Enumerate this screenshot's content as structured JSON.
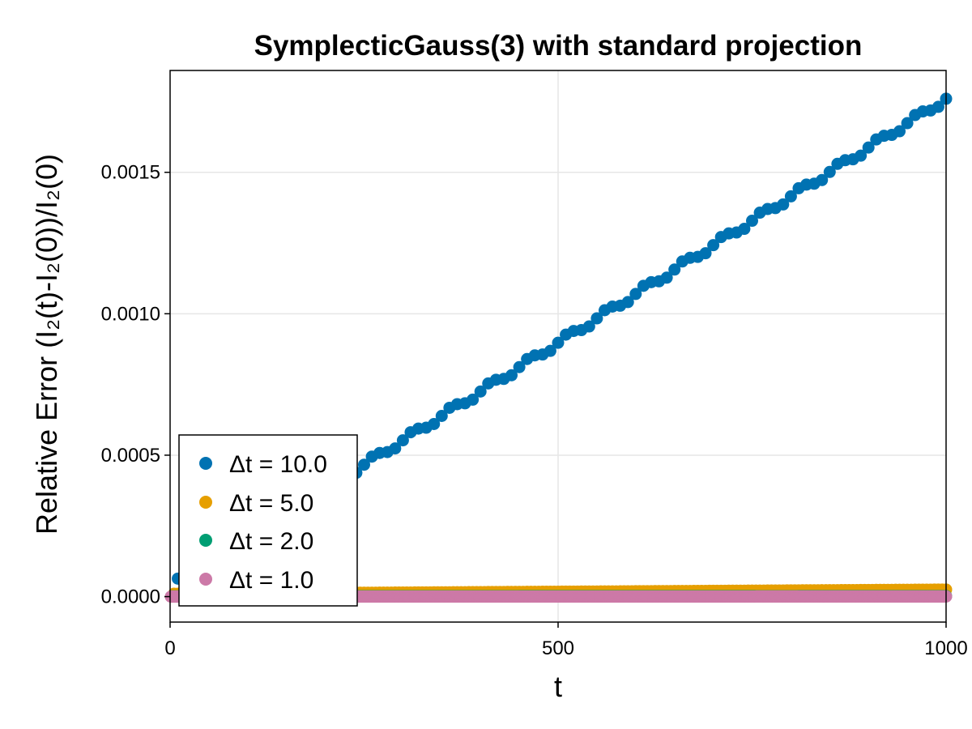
{
  "chart_data": {
    "type": "scatter",
    "title": "SymplecticGauss(3) with standard projection",
    "xlabel": "t",
    "ylabel": "Relative Error (I₂(t)-I₂(0))/I₂(0)",
    "xlim": [
      0,
      1000
    ],
    "ylim": [
      -9e-05,
      0.00186
    ],
    "xticks": [
      0,
      500,
      1000
    ],
    "xtick_labels": [
      "0",
      "500",
      "1000"
    ],
    "yticks": [
      0.0,
      0.0005,
      0.001,
      0.0015
    ],
    "ytick_labels": [
      "0.0000",
      "0.0005",
      "0.0010",
      "0.0015"
    ],
    "grid": true,
    "legend_position": "bottom-left",
    "series": [
      {
        "name": "Δt = 10.0",
        "color": "#0072b2",
        "x_start": 10,
        "x_step": 10,
        "n": 100,
        "trend_start": 3.5e-05,
        "trend_end": 0.00176,
        "wiggle_period": 50,
        "wiggle_amplitude": 1.2e-05
      },
      {
        "name": "Δt = 5.0",
        "color": "#e69f00",
        "x_start": 5,
        "x_step": 5,
        "n": 200,
        "trend_start": 1e-05,
        "trend_end": 2.5e-05,
        "wiggle_period": 50,
        "wiggle_amplitude": 0.0
      },
      {
        "name": "Δt = 2.0",
        "color": "#009e73",
        "x_start": 2,
        "x_step": 2,
        "n": 500,
        "trend_start": 1e-06,
        "trend_end": 2e-06,
        "wiggle_period": 50,
        "wiggle_amplitude": 0.0
      },
      {
        "name": "Δt = 1.0",
        "color": "#cc79a7",
        "x_start": 1,
        "x_step": 1,
        "n": 1000,
        "trend_start": 0.0,
        "trend_end": 5e-07,
        "wiggle_period": 50,
        "wiggle_amplitude": 0.0
      }
    ]
  }
}
